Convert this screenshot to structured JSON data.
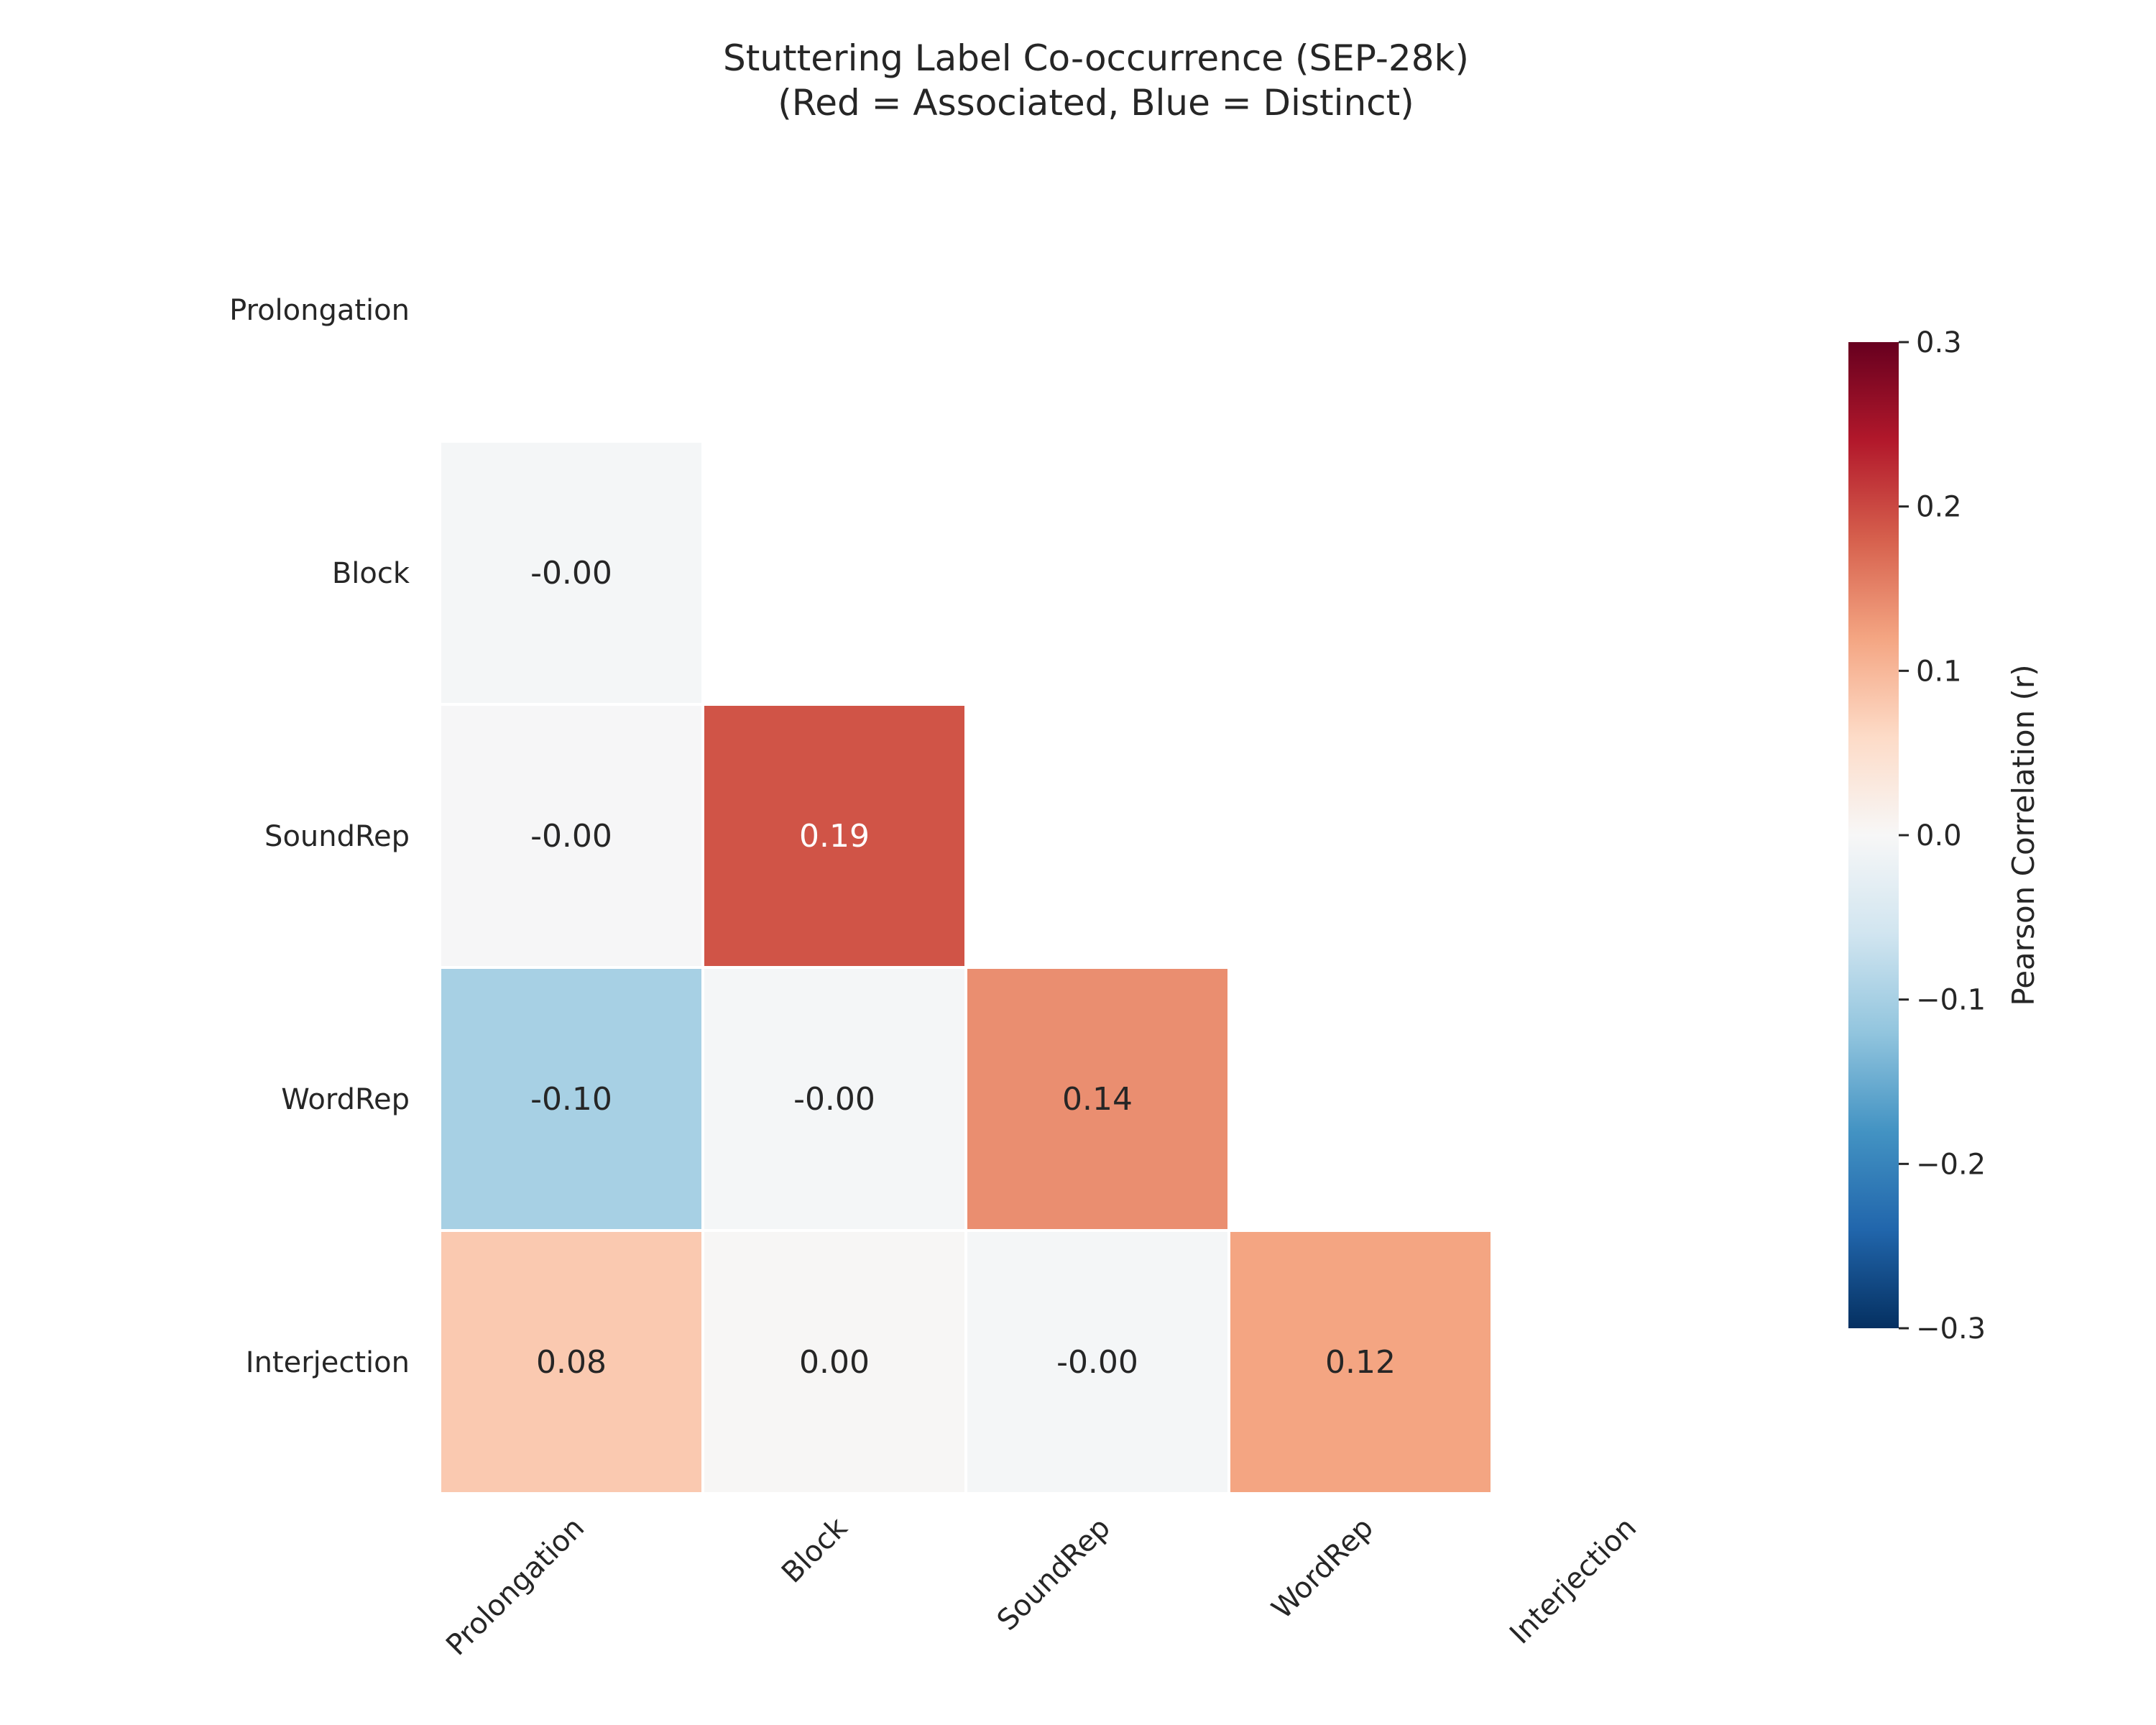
{
  "chart_data": {
    "type": "heatmap",
    "title": "Stuttering Label Co-occurrence (SEP-28k)",
    "subtitle": "(Red = Associated, Blue = Distinct)",
    "row_labels": [
      "Prolongation",
      "Block",
      "SoundRep",
      "WordRep",
      "Interjection"
    ],
    "col_labels": [
      "Prolongation",
      "Block",
      "SoundRep",
      "WordRep",
      "Interjection"
    ],
    "mask": "upper-triangle-and-diagonal",
    "cells": [
      {
        "row": 1,
        "col": 0,
        "value": -0.004,
        "label": "-0.00"
      },
      {
        "row": 2,
        "col": 0,
        "value": -0.002,
        "label": "-0.00"
      },
      {
        "row": 2,
        "col": 1,
        "value": 0.19,
        "label": "0.19"
      },
      {
        "row": 3,
        "col": 0,
        "value": -0.1,
        "label": "-0.10"
      },
      {
        "row": 3,
        "col": 1,
        "value": -0.004,
        "label": "-0.00"
      },
      {
        "row": 3,
        "col": 2,
        "value": 0.14,
        "label": "0.14"
      },
      {
        "row": 4,
        "col": 0,
        "value": 0.08,
        "label": "0.08"
      },
      {
        "row": 4,
        "col": 1,
        "value": 0.003,
        "label": "0.00"
      },
      {
        "row": 4,
        "col": 2,
        "value": -0.004,
        "label": "-0.00"
      },
      {
        "row": 4,
        "col": 3,
        "value": 0.12,
        "label": "0.12"
      }
    ],
    "colorbar": {
      "label": "Pearson Correlation (r)",
      "vmin": -0.3,
      "vmax": 0.3,
      "ticks": [
        0.3,
        0.2,
        0.1,
        0.0,
        -0.1,
        -0.2,
        -0.3
      ],
      "tick_labels": [
        "0.3",
        "0.2",
        "0.1",
        "0.0",
        "−0.1",
        "−0.2",
        "−0.3"
      ],
      "colormap": "RdBu_r",
      "stops": [
        "#053061",
        "#2166ac",
        "#4393c3",
        "#92c5de",
        "#d1e5f0",
        "#f7f7f7",
        "#fddbc7",
        "#f4a582",
        "#d6604d",
        "#b2182b",
        "#67001f"
      ]
    }
  }
}
